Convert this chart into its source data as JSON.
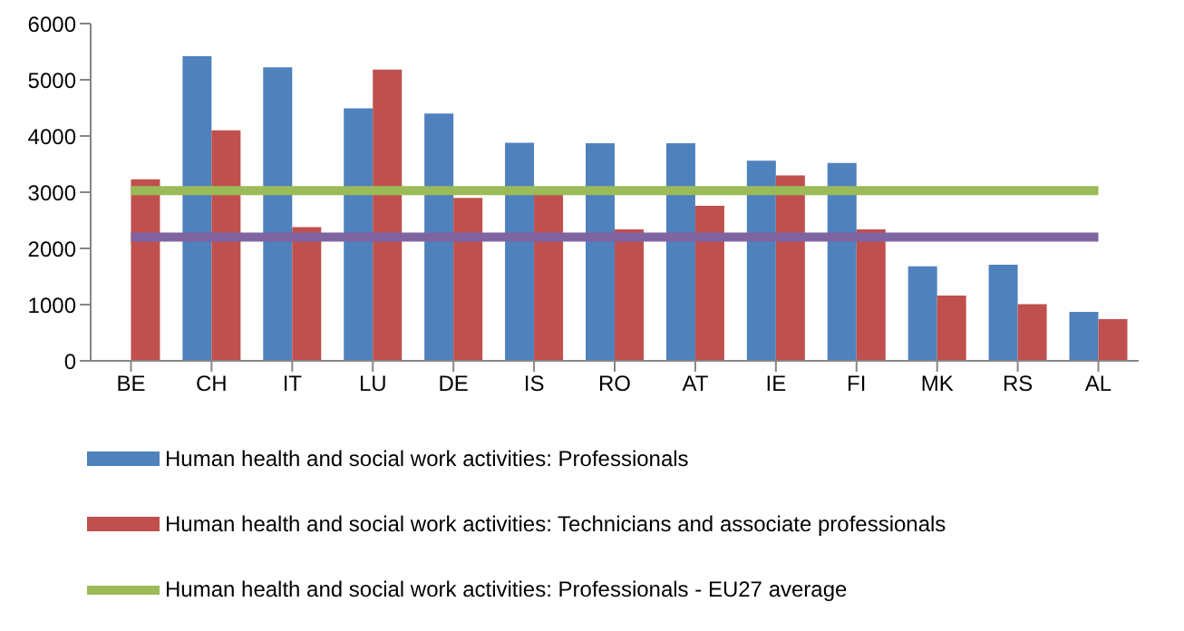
{
  "chart_data": {
    "type": "bar",
    "categories": [
      "BE",
      "CH",
      "IT",
      "LU",
      "DE",
      "IS",
      "RO",
      "AT",
      "IE",
      "FI",
      "MK",
      "RS",
      "AL"
    ],
    "series": [
      {
        "name": "Human health and social work activities: Professionals",
        "color": "#4f81bd",
        "values": [
          null,
          5420,
          5220,
          4490,
          4400,
          3880,
          3870,
          3870,
          3560,
          3520,
          1680,
          1710,
          870
        ]
      },
      {
        "name": "Human health and social work activities: Technicians and associate professionals",
        "color": "#c0504d",
        "values": [
          3230,
          4100,
          2380,
          5180,
          2900,
          2950,
          2340,
          2760,
          3300,
          2340,
          1160,
          1010,
          740
        ]
      },
      {
        "name": "Human health and social work activities: Professionals - EU27 average",
        "type": "line",
        "color": "#9bbb59",
        "values": [
          3030,
          3030,
          3030,
          3030,
          3030,
          3030,
          3030,
          3030,
          3030,
          3030,
          3030,
          3030,
          3030
        ]
      },
      {
        "type": "line",
        "color": "#8064a2",
        "values": [
          2200,
          2200,
          2200,
          2200,
          2200,
          2200,
          2200,
          2200,
          2200,
          2200,
          2200,
          2200,
          2200
        ]
      }
    ],
    "ylim": [
      0,
      6000
    ],
    "yticks": [
      0,
      1000,
      2000,
      3000,
      4000,
      5000,
      6000
    ],
    "grid": false,
    "legend": "bottom",
    "marker": "none"
  }
}
